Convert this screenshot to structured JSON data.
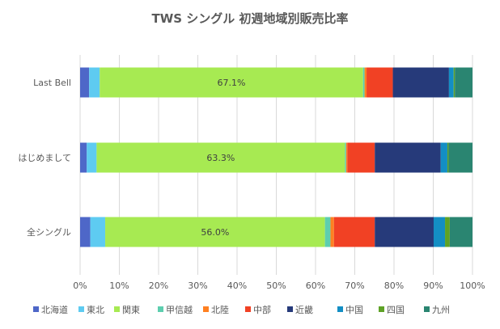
{
  "chart_data": {
    "type": "bar",
    "orientation": "horizontal",
    "stacked": "percent",
    "title": "TWS シングル 初週地域別販売比率",
    "categories": [
      "Last Bell",
      "はじめまして",
      "全シングル"
    ],
    "series": [
      {
        "name": "北海道",
        "color": "#4e67c8",
        "values": [
          2.3,
          1.7,
          2.6
        ]
      },
      {
        "name": "東北",
        "color": "#5ecbf1",
        "values": [
          2.7,
          2.5,
          3.8
        ]
      },
      {
        "name": "関東",
        "color": "#a7ea52",
        "values": [
          67.1,
          63.3,
          56.0
        ]
      },
      {
        "name": "甲信越",
        "color": "#5dceaf",
        "values": [
          0.4,
          0.3,
          1.4
        ]
      },
      {
        "name": "北陸",
        "color": "#ff8021",
        "values": [
          0.5,
          0.3,
          0.9
        ]
      },
      {
        "name": "中部",
        "color": "#f14124",
        "values": [
          6.7,
          7.0,
          10.4
        ]
      },
      {
        "name": "近畿",
        "color": "#263a7a",
        "values": [
          14.3,
          16.8,
          15.0
        ]
      },
      {
        "name": "中国",
        "color": "#138ec4",
        "values": [
          1.2,
          1.7,
          2.9
        ]
      },
      {
        "name": "四国",
        "color": "#5ea226",
        "values": [
          0.3,
          0.3,
          1.2
        ]
      },
      {
        "name": "九州",
        "color": "#2a8571",
        "values": [
          4.5,
          6.1,
          5.8
        ]
      }
    ],
    "data_labels": [
      "67.1%",
      "63.3%",
      "56.0%"
    ],
    "xlim": [
      0,
      100
    ],
    "xticks": [
      "0%",
      "10%",
      "20%",
      "30%",
      "40%",
      "50%",
      "60%",
      "70%",
      "80%",
      "90%",
      "100%"
    ],
    "grid": true,
    "legend": "bottom"
  }
}
